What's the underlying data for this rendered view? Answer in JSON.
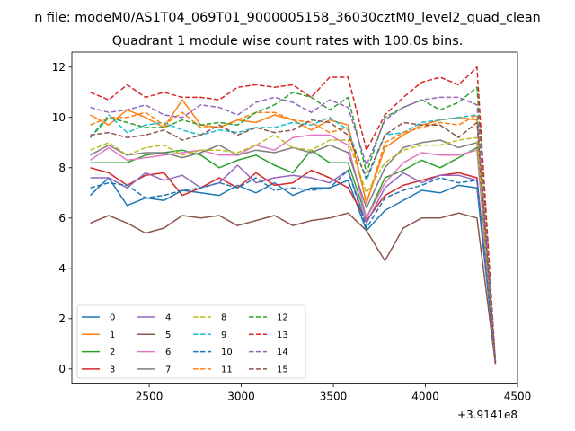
{
  "figure": {
    "suptitle": "n file: modeM0/AS1T04_069T01_9000005158_36030cztM0_level2_quad_clean",
    "offset_label": "+3.9141e8"
  },
  "chart_data": {
    "type": "line",
    "title": "Quadrant 1 module wise count rates with 100.0s bins.",
    "xlabel": "",
    "ylabel": "",
    "x_offset": 391410000,
    "xlim": [
      2080,
      4500
    ],
    "ylim": [
      -0.6,
      12.6
    ],
    "xticks": [
      2500,
      3000,
      3500,
      4000,
      4500
    ],
    "yticks": [
      0,
      2,
      4,
      6,
      8,
      10,
      12
    ],
    "x": [
      2180,
      2280,
      2380,
      2480,
      2580,
      2680,
      2780,
      2880,
      2980,
      3080,
      3180,
      3280,
      3380,
      3480,
      3580,
      3680,
      3780,
      3880,
      3980,
      4080,
      4180,
      4280,
      4380
    ],
    "legend": {
      "location": "lower-left",
      "columns": 4
    },
    "grid": false,
    "series": [
      {
        "name": "0",
        "color": "#1f77b4",
        "dash": "solid",
        "values": [
          6.9,
          7.6,
          6.5,
          6.8,
          6.7,
          7.1,
          7.0,
          6.9,
          7.3,
          7.0,
          7.4,
          6.9,
          7.2,
          7.2,
          7.5,
          5.5,
          6.3,
          6.7,
          7.1,
          7.0,
          7.3,
          7.2,
          0.3
        ]
      },
      {
        "name": "1",
        "color": "#ff7f0e",
        "dash": "solid",
        "values": [
          10.1,
          9.7,
          10.3,
          10.0,
          9.6,
          10.7,
          9.7,
          9.6,
          9.9,
          9.8,
          10.1,
          9.9,
          9.5,
          9.9,
          9.7,
          6.6,
          8.8,
          9.3,
          9.7,
          9.9,
          10.0,
          9.9,
          0.2
        ]
      },
      {
        "name": "2",
        "color": "#2ca02c",
        "dash": "solid",
        "values": [
          8.2,
          8.2,
          8.2,
          8.5,
          8.6,
          8.7,
          8.5,
          8.0,
          8.3,
          8.5,
          8.1,
          7.8,
          8.7,
          8.2,
          8.2,
          6.0,
          7.6,
          7.9,
          8.3,
          8.0,
          8.4,
          8.8,
          0.3
        ]
      },
      {
        "name": "3",
        "color": "#d62728",
        "dash": "solid",
        "values": [
          8.0,
          7.8,
          7.3,
          7.7,
          7.8,
          6.9,
          7.2,
          7.6,
          7.2,
          7.8,
          7.3,
          7.4,
          7.9,
          7.6,
          7.2,
          5.9,
          6.9,
          7.3,
          7.5,
          7.7,
          7.8,
          7.6,
          0.3
        ]
      },
      {
        "name": "4",
        "color": "#9467bd",
        "dash": "solid",
        "values": [
          7.6,
          7.6,
          7.2,
          7.8,
          7.5,
          7.7,
          7.2,
          7.4,
          8.1,
          7.4,
          7.6,
          7.7,
          7.6,
          7.4,
          7.9,
          5.8,
          7.2,
          7.8,
          7.4,
          7.7,
          7.7,
          7.5,
          0.3
        ]
      },
      {
        "name": "5",
        "color": "#8c564b",
        "dash": "solid",
        "values": [
          5.8,
          6.1,
          5.8,
          5.4,
          5.6,
          6.1,
          6.0,
          6.1,
          5.7,
          5.9,
          6.1,
          5.7,
          5.9,
          6.0,
          6.2,
          5.5,
          4.3,
          5.6,
          6.0,
          6.0,
          6.2,
          6.0,
          0.2
        ]
      },
      {
        "name": "6",
        "color": "#e377c2",
        "dash": "solid",
        "values": [
          8.3,
          8.8,
          8.3,
          8.4,
          8.5,
          8.6,
          8.7,
          8.5,
          8.5,
          8.9,
          8.7,
          9.2,
          9.3,
          9.3,
          8.9,
          6.0,
          7.4,
          8.2,
          8.6,
          8.5,
          8.5,
          8.7,
          0.2
        ]
      },
      {
        "name": "7",
        "color": "#7f7f7f",
        "dash": "solid",
        "values": [
          8.5,
          8.9,
          8.5,
          8.6,
          8.6,
          8.4,
          8.6,
          8.9,
          8.5,
          8.7,
          8.6,
          8.8,
          8.6,
          8.9,
          8.6,
          6.4,
          8.0,
          8.8,
          9.0,
          9.1,
          8.8,
          9.0,
          0.2
        ]
      },
      {
        "name": "8",
        "color": "#bcbd22",
        "dash": "dashed",
        "values": [
          8.7,
          9.0,
          8.5,
          8.8,
          8.9,
          8.5,
          8.7,
          8.7,
          8.6,
          8.9,
          9.3,
          8.8,
          8.7,
          9.1,
          9.1,
          7.0,
          8.2,
          8.7,
          8.9,
          8.9,
          9.1,
          9.2,
          0.2
        ]
      },
      {
        "name": "9",
        "color": "#17becf",
        "dash": "dashed",
        "values": [
          9.2,
          10.1,
          9.4,
          9.7,
          9.8,
          9.5,
          9.3,
          9.5,
          9.4,
          9.6,
          9.6,
          9.8,
          9.7,
          10.0,
          9.5,
          7.5,
          9.3,
          9.4,
          9.8,
          9.9,
          10.0,
          10.1,
          0.2
        ]
      },
      {
        "name": "10",
        "color": "#1f77b4",
        "dash": "dashed",
        "values": [
          7.2,
          7.4,
          7.3,
          6.8,
          6.9,
          7.1,
          7.2,
          7.4,
          7.2,
          7.6,
          7.1,
          7.2,
          7.1,
          7.2,
          7.9,
          5.6,
          6.8,
          7.1,
          7.3,
          7.6,
          7.4,
          7.5,
          0.2
        ]
      },
      {
        "name": "11",
        "color": "#ff7f0e",
        "dash": "dashed",
        "values": [
          9.7,
          10.0,
          10.0,
          10.2,
          9.7,
          10.2,
          9.6,
          9.6,
          9.9,
          10.2,
          10.2,
          9.9,
          9.8,
          9.4,
          9.6,
          6.6,
          9.0,
          9.4,
          9.6,
          9.8,
          9.7,
          10.1,
          0.2
        ]
      },
      {
        "name": "12",
        "color": "#2ca02c",
        "dash": "dashed",
        "values": [
          9.2,
          10.0,
          9.8,
          9.6,
          9.6,
          9.9,
          9.7,
          9.8,
          9.7,
          10.2,
          10.5,
          11.0,
          10.8,
          10.3,
          10.8,
          7.8,
          10.0,
          10.4,
          10.7,
          10.3,
          10.6,
          11.2,
          0.3
        ]
      },
      {
        "name": "13",
        "color": "#d62728",
        "dash": "dashed",
        "values": [
          11.0,
          10.7,
          11.3,
          10.8,
          11.0,
          10.8,
          10.8,
          10.7,
          11.2,
          11.3,
          11.2,
          11.3,
          10.8,
          11.6,
          11.6,
          8.7,
          10.1,
          10.8,
          11.4,
          11.6,
          11.3,
          12.0,
          0.3
        ]
      },
      {
        "name": "14",
        "color": "#9467bd",
        "dash": "dashed",
        "values": [
          10.4,
          10.2,
          10.3,
          10.5,
          10.1,
          10.0,
          10.5,
          10.4,
          10.1,
          10.6,
          10.8,
          10.6,
          10.2,
          10.7,
          10.4,
          8.1,
          9.9,
          10.4,
          10.7,
          10.8,
          10.8,
          10.5,
          0.3
        ]
      },
      {
        "name": "15",
        "color": "#8c564b",
        "dash": "dashed",
        "values": [
          9.3,
          9.4,
          9.2,
          9.3,
          9.5,
          9.1,
          9.3,
          9.7,
          9.3,
          9.6,
          9.4,
          9.5,
          9.9,
          9.8,
          9.3,
          7.6,
          9.3,
          9.8,
          9.7,
          9.7,
          9.2,
          9.8,
          0.2
        ]
      }
    ]
  }
}
